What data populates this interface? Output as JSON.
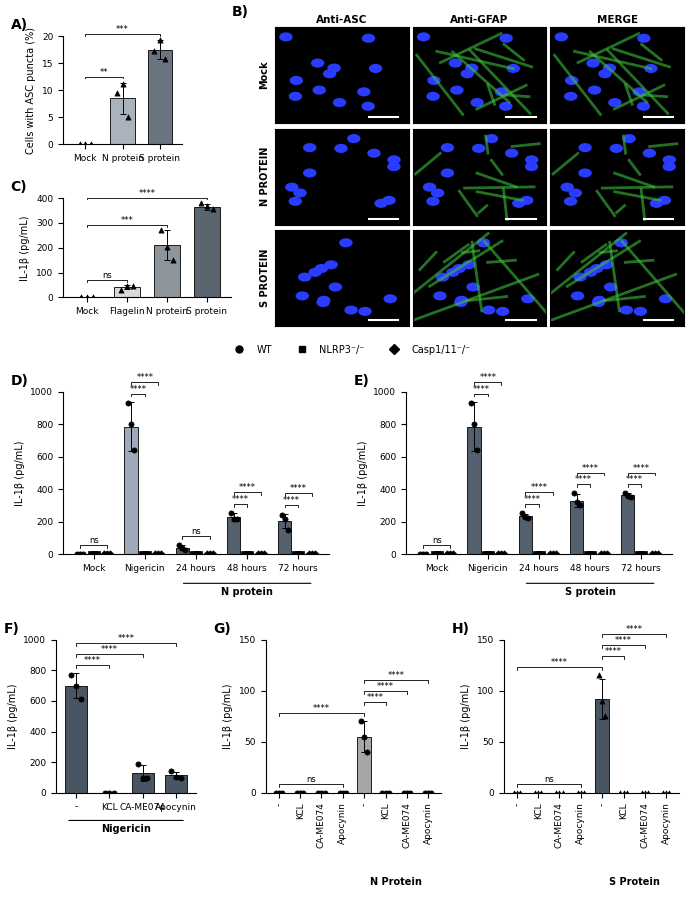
{
  "chart_data": [
    {
      "panel": "A)",
      "type": "bar",
      "categories": [
        "Mock",
        "N protein",
        "S protein"
      ],
      "y_label": "Cells with ASC puncta (%)",
      "ylim": [
        0,
        20
      ],
      "yticks": [
        0,
        5,
        10,
        15,
        20
      ],
      "series": [
        {
          "values": [
            0,
            8.5,
            17.5
          ],
          "errors": [
            0,
            2.9,
            1.8
          ],
          "points": [
            [
              0,
              0,
              0
            ],
            [
              9.5,
              11.2,
              5.0
            ],
            [
              17.2,
              19.3,
              15.8
            ]
          ],
          "colors": [
            "#ffffff",
            "#aab2bb",
            "#6b7480"
          ],
          "marker": "triangle"
        }
      ],
      "annotations": [
        {
          "from": [
            0,
            0
          ],
          "to": [
            1,
            0
          ],
          "text": "**"
        },
        {
          "from": [
            0,
            0
          ],
          "to": [
            2,
            0
          ],
          "text": "***"
        }
      ]
    },
    {
      "panel": "B)",
      "type": "image_grid",
      "columns": [
        "Anti-ASC",
        "Anti-GFAP",
        "MERGE"
      ],
      "rows": [
        "Mock",
        "N PROTEIN",
        "S PROTEIN"
      ]
    },
    {
      "panel": "C)",
      "type": "bar",
      "categories": [
        "Mock",
        "Flagelin",
        "N protein",
        "S protein"
      ],
      "y_label": "IL-1β (pg/mL)",
      "ylim": [
        0,
        400
      ],
      "yticks": [
        0,
        100,
        200,
        300,
        400
      ],
      "series": [
        {
          "values": [
            0,
            40,
            210,
            365
          ],
          "errors": [
            0,
            8,
            60,
            12
          ],
          "points": [
            [
              0,
              0,
              0
            ],
            [
              30,
              45,
              45
            ],
            [
              270,
              205,
              150
            ],
            [
              380,
              370,
              355
            ]
          ],
          "colors": [
            "#ffffff",
            "#d9d9d9",
            "#8c949c",
            "#5b6570"
          ],
          "marker": "triangle"
        }
      ],
      "annotations": [
        {
          "from": [
            0,
            0
          ],
          "to": [
            1,
            0
          ],
          "text": "ns"
        },
        {
          "from": [
            0,
            0
          ],
          "to": [
            2,
            0
          ],
          "text": "***"
        },
        {
          "from": [
            0,
            0
          ],
          "to": [
            3,
            0
          ],
          "text": "****"
        }
      ]
    },
    {
      "panel": "D)",
      "type": "bar",
      "categories": [
        "Mock",
        "Nigericin",
        "24 hours",
        "48 hours",
        "72 hours"
      ],
      "y_label": "IL-1β (pg/mL)",
      "ylim": [
        0,
        1000
      ],
      "yticks": [
        0,
        200,
        400,
        600,
        800,
        1000
      ],
      "legend": "upper center",
      "groups": [
        {
          "label": "N protein",
          "from": 2,
          "to": 4
        }
      ],
      "series": [
        {
          "name": "WT",
          "marker": "circle",
          "colors": [
            "#ffffff",
            "#9faab8",
            "#55606e",
            "#55606e",
            "#55606e"
          ],
          "values": [
            0,
            785,
            40,
            230,
            205
          ],
          "errors": [
            0,
            150,
            15,
            25,
            45
          ],
          "points": [
            [
              0,
              0,
              0
            ],
            [
              930,
              800,
              640
            ],
            [
              55,
              35,
              25
            ],
            [
              255,
              215,
              215
            ],
            [
              240,
              215,
              150
            ]
          ]
        },
        {
          "name": "NLRP3⁻/⁻",
          "marker": "square",
          "color": "#ffffff",
          "values": [
            0,
            0,
            0,
            0,
            0
          ],
          "errors": [
            0,
            0,
            0,
            0,
            0
          ],
          "points": [
            [
              0,
              0,
              0
            ],
            [
              0,
              0,
              0
            ],
            [
              0,
              0,
              0
            ],
            [
              0,
              0,
              0
            ],
            [
              0,
              0,
              0
            ]
          ]
        },
        {
          "name": "Casp1/11⁻/⁻",
          "marker": "diamond",
          "color": "#ffffff",
          "values": [
            0,
            0,
            0,
            0,
            0
          ],
          "errors": [
            0,
            0,
            0,
            0,
            0
          ],
          "points": [
            [
              0,
              0,
              0
            ],
            [
              0,
              0,
              0
            ],
            [
              0,
              0,
              0
            ],
            [
              0,
              0,
              0
            ],
            [
              0,
              0,
              0
            ]
          ]
        }
      ],
      "annotations": [
        {
          "from": [
            0,
            0
          ],
          "to": [
            0,
            2
          ],
          "text": "ns"
        },
        {
          "from": [
            1,
            0
          ],
          "to": [
            1,
            1
          ],
          "text": "****"
        },
        {
          "from": [
            1,
            0
          ],
          "to": [
            1,
            2
          ],
          "text": "****"
        },
        {
          "from": [
            2,
            0
          ],
          "to": [
            2,
            2
          ],
          "text": "ns"
        },
        {
          "from": [
            3,
            0
          ],
          "to": [
            3,
            1
          ],
          "text": "****"
        },
        {
          "from": [
            3,
            0
          ],
          "to": [
            3,
            2
          ],
          "text": "****"
        },
        {
          "from": [
            4,
            0
          ],
          "to": [
            4,
            1
          ],
          "text": "****"
        },
        {
          "from": [
            4,
            0
          ],
          "to": [
            4,
            2
          ],
          "text": "****"
        }
      ]
    },
    {
      "panel": "E)",
      "type": "bar",
      "categories": [
        "Mock",
        "Nigericin",
        "24 hours",
        "48 hours",
        "72 hours"
      ],
      "y_label": "IL-1β (pg/mL)",
      "ylim": [
        0,
        1000
      ],
      "yticks": [
        0,
        200,
        400,
        600,
        800,
        1000
      ],
      "groups": [
        {
          "label": "S protein",
          "from": 2,
          "to": 4
        }
      ],
      "series": [
        {
          "name": "WT",
          "marker": "circle",
          "colors": [
            "#ffffff",
            "#55606e",
            "#55606e",
            "#55606e",
            "#55606e"
          ],
          "values": [
            0,
            785,
            235,
            330,
            365
          ],
          "errors": [
            0,
            150,
            15,
            40,
            10
          ],
          "points": [
            [
              0,
              0,
              0
            ],
            [
              930,
              800,
              640
            ],
            [
              255,
              230,
              225
            ],
            [
              375,
              320,
              300
            ],
            [
              375,
              360,
              355
            ]
          ]
        },
        {
          "name": "NLRP3⁻/⁻",
          "marker": "square",
          "color": "#ffffff",
          "values": [
            0,
            0,
            0,
            0,
            0
          ],
          "errors": [
            0,
            0,
            0,
            0,
            0
          ],
          "points": [
            [
              0,
              0,
              0
            ],
            [
              0,
              0,
              0
            ],
            [
              0,
              0,
              0
            ],
            [
              0,
              0,
              0
            ],
            [
              0,
              0,
              0
            ]
          ]
        },
        {
          "name": "Casp1/11⁻/⁻",
          "marker": "diamond",
          "color": "#ffffff",
          "values": [
            0,
            0,
            0,
            0,
            0
          ],
          "errors": [
            0,
            0,
            0,
            0,
            0
          ],
          "points": [
            [
              0,
              0,
              0
            ],
            [
              0,
              0,
              0
            ],
            [
              0,
              0,
              0
            ],
            [
              0,
              0,
              0
            ],
            [
              0,
              0,
              0
            ]
          ]
        }
      ],
      "annotations": [
        {
          "from": [
            0,
            0
          ],
          "to": [
            0,
            2
          ],
          "text": "ns"
        },
        {
          "from": [
            1,
            0
          ],
          "to": [
            1,
            1
          ],
          "text": "****"
        },
        {
          "from": [
            1,
            0
          ],
          "to": [
            1,
            2
          ],
          "text": "****"
        },
        {
          "from": [
            2,
            0
          ],
          "to": [
            2,
            1
          ],
          "text": "****"
        },
        {
          "from": [
            2,
            0
          ],
          "to": [
            2,
            2
          ],
          "text": "****"
        },
        {
          "from": [
            3,
            0
          ],
          "to": [
            3,
            1
          ],
          "text": "****"
        },
        {
          "from": [
            3,
            0
          ],
          "to": [
            3,
            2
          ],
          "text": "****"
        },
        {
          "from": [
            4,
            0
          ],
          "to": [
            4,
            1
          ],
          "text": "****"
        },
        {
          "from": [
            4,
            0
          ],
          "to": [
            4,
            2
          ],
          "text": "****"
        }
      ]
    },
    {
      "panel": "F)",
      "type": "bar",
      "categories": [
        "-",
        "KCL",
        "CA-ME074",
        "Apocynin"
      ],
      "y_label": "IL-1β (pg/mL)",
      "ylim": [
        0,
        1000
      ],
      "yticks": [
        0,
        200,
        400,
        600,
        800,
        1000
      ],
      "groups": [
        {
          "label": "Nigericin",
          "from": 0,
          "to": 3
        }
      ],
      "series": [
        {
          "values": [
            700,
            0,
            130,
            115
          ],
          "errors": [
            80,
            0,
            50,
            20
          ],
          "points": [
            [
              770,
              700,
              610
            ],
            [
              0,
              0,
              0
            ],
            [
              190,
              100,
              100
            ],
            [
              140,
              105,
              100
            ]
          ],
          "colors": [
            "#4a5563",
            "#4a5563",
            "#4a5563",
            "#4a5563"
          ],
          "marker": "circle"
        }
      ],
      "annotations": [
        {
          "from": [
            0,
            0
          ],
          "to": [
            1,
            0
          ],
          "text": "****"
        },
        {
          "from": [
            0,
            0
          ],
          "to": [
            2,
            0
          ],
          "text": "****"
        },
        {
          "from": [
            0,
            0
          ],
          "to": [
            3,
            0
          ],
          "text": "****"
        }
      ]
    },
    {
      "panel": "G)",
      "type": "bar",
      "categories": [
        "-",
        "KCL",
        "CA-ME074",
        "Apocynin",
        "-",
        "KCL",
        "CA-ME074",
        "Apocynin"
      ],
      "y_label": "IL-1β (pg/mL)",
      "ylim": [
        0,
        150
      ],
      "yticks": [
        0,
        50,
        100,
        150
      ],
      "groups": [
        {
          "label": "N Protein",
          "from": 4,
          "to": 7
        }
      ],
      "series": [
        {
          "values": [
            0,
            0,
            0,
            0,
            55,
            0,
            0,
            0
          ],
          "errors": [
            0,
            0,
            0,
            0,
            15,
            0,
            0,
            0
          ],
          "points": [
            [
              0,
              0,
              0
            ],
            [
              0,
              0,
              0
            ],
            [
              0,
              0,
              0
            ],
            [
              0,
              0,
              0
            ],
            [
              70,
              55,
              40
            ],
            [
              0,
              0,
              0
            ],
            [
              0,
              0,
              0
            ],
            [
              0,
              0,
              0
            ]
          ],
          "colors": [
            "#ffffff",
            "#ffffff",
            "#ffffff",
            "#ffffff",
            "#a6a6a6",
            "#a6a6a6",
            "#a6a6a6",
            "#a6a6a6"
          ],
          "marker": "circle"
        }
      ],
      "annotations": [
        {
          "from": [
            0,
            0
          ],
          "to": [
            3,
            0
          ],
          "text": "ns"
        },
        {
          "from": [
            0,
            0
          ],
          "to": [
            4,
            0
          ],
          "text": "****"
        },
        {
          "from": [
            4,
            0
          ],
          "to": [
            5,
            0
          ],
          "text": "****"
        },
        {
          "from": [
            4,
            0
          ],
          "to": [
            6,
            0
          ],
          "text": "****"
        },
        {
          "from": [
            4,
            0
          ],
          "to": [
            7,
            0
          ],
          "text": "****"
        }
      ]
    },
    {
      "panel": "H)",
      "type": "bar",
      "categories": [
        "-",
        "KCL",
        "CA-ME074",
        "Apocynin",
        "-",
        "KCL",
        "CA-ME074",
        "Apocynin"
      ],
      "y_label": "IL-1β (pg/mL)",
      "ylim": [
        0,
        150
      ],
      "yticks": [
        0,
        50,
        100,
        150
      ],
      "groups": [
        {
          "label": "S Protein",
          "from": 4,
          "to": 7
        }
      ],
      "series": [
        {
          "values": [
            0,
            0,
            0,
            0,
            92,
            0,
            0,
            0
          ],
          "errors": [
            0,
            0,
            0,
            0,
            20,
            0,
            0,
            0
          ],
          "points": [
            [
              0,
              0,
              0
            ],
            [
              0,
              0,
              0
            ],
            [
              0,
              0,
              0
            ],
            [
              0,
              0,
              0
            ],
            [
              115,
              90,
              75
            ],
            [
              0,
              0,
              0
            ],
            [
              0,
              0,
              0
            ],
            [
              0,
              0,
              0
            ]
          ],
          "colors": [
            "#4a5563",
            "#4a5563",
            "#4a5563",
            "#4a5563",
            "#4a5563",
            "#4a5563",
            "#4a5563",
            "#4a5563"
          ],
          "marker": "triangle"
        }
      ],
      "annotations": [
        {
          "from": [
            0,
            0
          ],
          "to": [
            3,
            0
          ],
          "text": "ns"
        },
        {
          "from": [
            0,
            0
          ],
          "to": [
            4,
            0
          ],
          "text": "****"
        },
        {
          "from": [
            4,
            0
          ],
          "to": [
            5,
            0
          ],
          "text": "****"
        },
        {
          "from": [
            4,
            0
          ],
          "to": [
            6,
            0
          ],
          "text": "****"
        },
        {
          "from": [
            4,
            0
          ],
          "to": [
            7,
            0
          ],
          "text": "****"
        }
      ]
    }
  ]
}
